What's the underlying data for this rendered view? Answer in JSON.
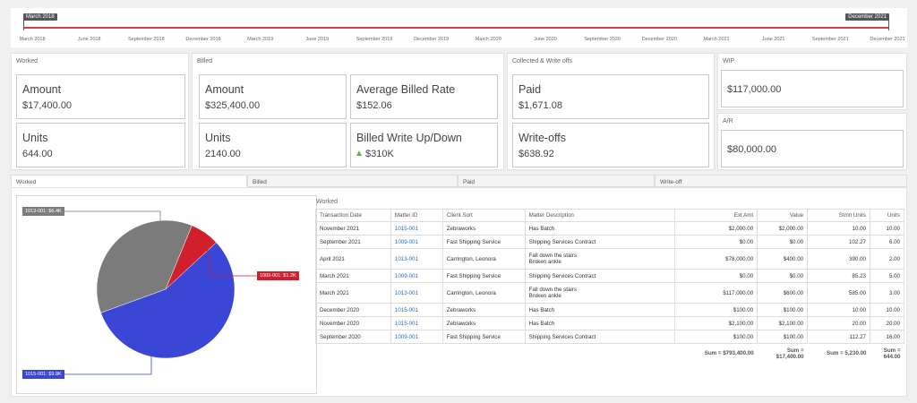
{
  "timeline": {
    "start_label": "March 2018",
    "end_label": "December 2021",
    "ticks": [
      "March 2018",
      "June 2018",
      "September 2018",
      "December 2018",
      "March 2019",
      "June 2019",
      "September 2019",
      "December 2019",
      "March 2020",
      "June 2020",
      "September 2020",
      "December 2020",
      "March 2021",
      "June 2021",
      "September 2021",
      "December 2021"
    ]
  },
  "worked": {
    "title": "Worked",
    "amount_label": "Amount",
    "amount_value": "$17,400.00",
    "units_label": "Units",
    "units_value": "644.00"
  },
  "billed": {
    "title": "Billed",
    "amount_label": "Amount",
    "amount_value": "$325,400.00",
    "avg_label": "Average Billed Rate",
    "avg_value": "$152.06",
    "units_label": "Units",
    "units_value": "2140.00",
    "writeup_label": "Billed Write Up/Down",
    "writeup_value": "$310K"
  },
  "collected": {
    "title": "Collected & Write offs",
    "paid_label": "Paid",
    "paid_value": "$1,671.08",
    "writeoffs_label": "Write-offs",
    "writeoffs_value": "$638.92"
  },
  "wip": {
    "title": "WIP",
    "value": "$117,000.00"
  },
  "ar": {
    "title": "A/R",
    "value": "$80,000.00"
  },
  "tabs": [
    "Worked",
    "Billed",
    "Paid",
    "Write-off"
  ],
  "chart_data": {
    "type": "pie",
    "slices": [
      {
        "label": "1013-001: $6.4K",
        "value": 6.4,
        "color": "#7b7b7b"
      },
      {
        "label": "1009-001: $1.2K",
        "value": 1.2,
        "color": "#d0202e"
      },
      {
        "label": "1015-001: $9.8K",
        "value": 9.8,
        "color": "#3a46d6"
      }
    ]
  },
  "table": {
    "title": "Worked",
    "headers": [
      "Transaction Date",
      "Matter ID",
      "Client Sort",
      "Matter Description",
      "Ext Amt",
      "Value",
      "Stmn Units",
      "Units"
    ],
    "rows": [
      [
        "November 2021",
        "1015-001",
        "Zebraworks",
        "Has Batch",
        "$2,000.00",
        "$2,000.00",
        "10.00",
        "10.00"
      ],
      [
        "September 2021",
        "1009-001",
        "Fast Shipping Service",
        "Shipping Services Contract",
        "$0.00",
        "$0.00",
        "102.27",
        "6.00"
      ],
      [
        "April 2021",
        "1013-001",
        "Carrington, Leonora",
        "Fall down the stairs\nBroken ankle",
        "$78,000.00",
        "$400.00",
        "390.00",
        "2.00"
      ],
      [
        "March 2021",
        "1009-001",
        "Fast Shipping Service",
        "Shipping Services Contract",
        "$0.00",
        "$0.00",
        "85.23",
        "5.00"
      ],
      [
        "March 2021",
        "1013-001",
        "Carrington, Leonora",
        "Fall down the stairs\nBroken ankle",
        "$117,000.00",
        "$600.00",
        "585.00",
        "3.00"
      ],
      [
        "December 2020",
        "1015-001",
        "Zebraworks",
        "Has Batch",
        "$100.00",
        "$100.00",
        "10.00",
        "10.00"
      ],
      [
        "November 2020",
        "1015-001",
        "Zebraworks",
        "Has Batch",
        "$2,100.00",
        "$2,100.00",
        "20.00",
        "20.00"
      ],
      [
        "September 2020",
        "1009-001",
        "Fast Shipping Service",
        "Shipping Services Contract",
        "$100.00",
        "$100.00",
        "112.27",
        "16.00"
      ]
    ],
    "sums": [
      "Sum = $793,400.00",
      "Sum = $17,400.00",
      "Sum = 5,230.00",
      "Sum = 644.00"
    ]
  },
  "colors": {
    "timeline": "#d0404a",
    "link": "#2a6ebd",
    "up_arrow": "#6ab23e"
  }
}
